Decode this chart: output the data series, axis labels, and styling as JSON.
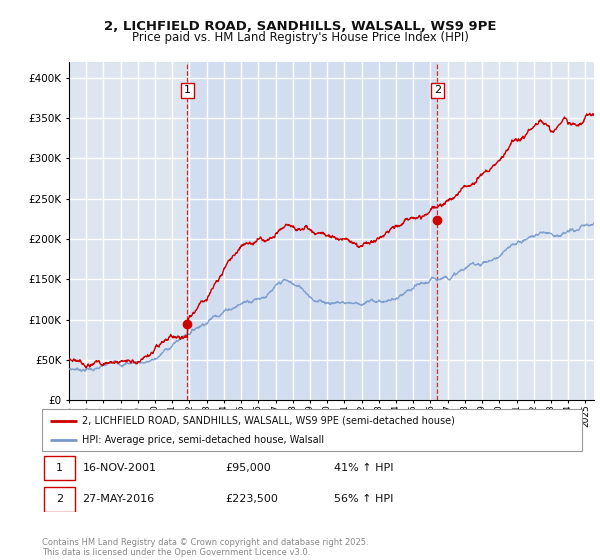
{
  "title_line1": "2, LICHFIELD ROAD, SANDHILLS, WALSALL, WS9 9PE",
  "title_line2": "Price paid vs. HM Land Registry's House Price Index (HPI)",
  "legend_label_red": "2, LICHFIELD ROAD, SANDHILLS, WALSALL, WS9 9PE (semi-detached house)",
  "legend_label_blue": "HPI: Average price, semi-detached house, Walsall",
  "sale1_label": "1",
  "sale1_date": "16-NOV-2001",
  "sale1_price": "£95,000",
  "sale1_hpi": "41% ↑ HPI",
  "sale2_label": "2",
  "sale2_date": "27-MAY-2016",
  "sale2_price": "£223,500",
  "sale2_hpi": "56% ↑ HPI",
  "sale1_year": 2001.88,
  "sale2_year": 2016.4,
  "sale1_price_val": 95000,
  "sale2_price_val": 223500,
  "red_color": "#cc0000",
  "blue_color": "#7799cc",
  "bg_color": "#dde5f0",
  "highlight_bg": "#ccd9f0",
  "grid_color": "#ffffff",
  "copyright_text": "Contains HM Land Registry data © Crown copyright and database right 2025.\nThis data is licensed under the Open Government Licence v3.0.",
  "xmin": 1995,
  "xmax": 2025.5,
  "ymin": 0,
  "ymax": 420000
}
